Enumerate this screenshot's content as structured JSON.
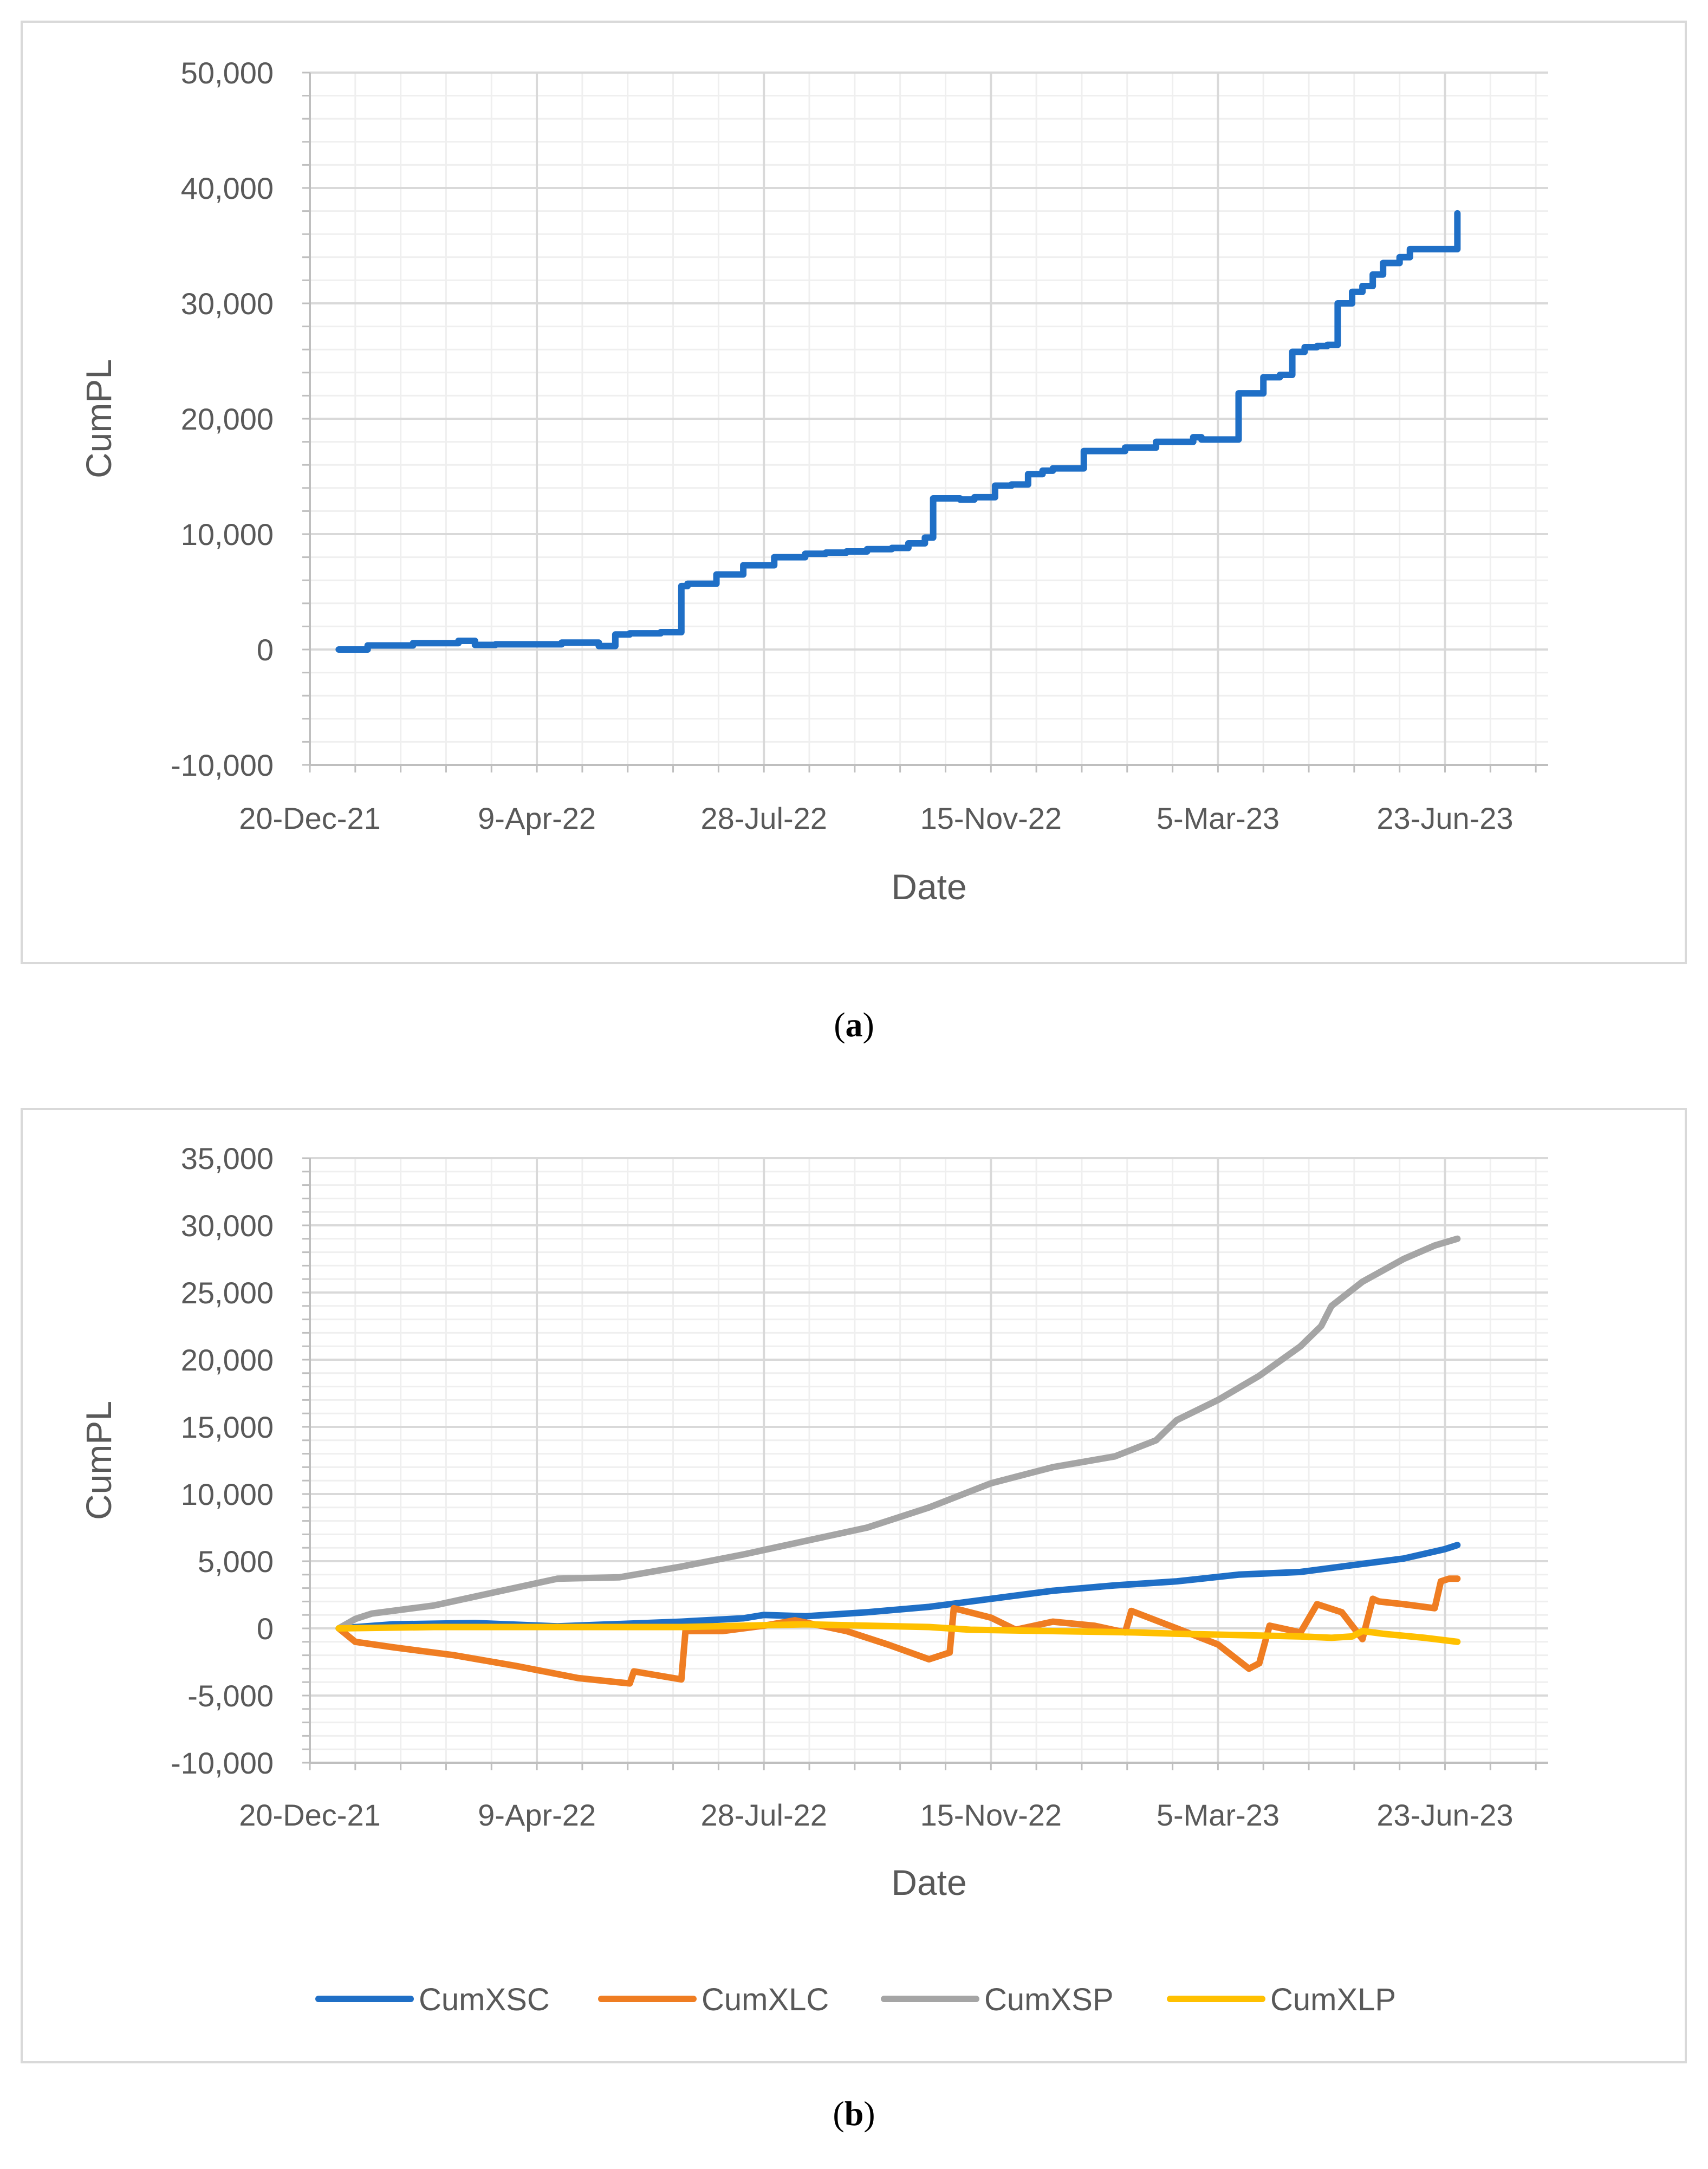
{
  "chart_data": [
    {
      "id": "a",
      "type": "line",
      "caption": "a",
      "xlabel": "Date",
      "ylabel": "CumPL",
      "ylim": [
        -10000,
        50000
      ],
      "yticks": [
        -10000,
        0,
        10000,
        20000,
        30000,
        40000,
        50000
      ],
      "ytick_labels": [
        "-10,000",
        "0",
        "10,000",
        "20,000",
        "30,000",
        "40,000",
        "50,000"
      ],
      "xlim_days": [
        0,
        600
      ],
      "xticks_days": [
        0,
        110,
        220,
        330,
        440,
        550
      ],
      "xtick_labels": [
        "20-Dec-21",
        "9-Apr-22",
        "28-Jul-22",
        "15-Nov-22",
        "5-Mar-23",
        "23-Jun-23"
      ],
      "legend": false,
      "series": [
        {
          "name": "CumPL",
          "color": "#1f6fc6",
          "step": true,
          "x": [
            14,
            28,
            50,
            72,
            80,
            90,
            105,
            122,
            140,
            148,
            155,
            170,
            180,
            183,
            197,
            210,
            220,
            225,
            240,
            250,
            260,
            270,
            282,
            290,
            298,
            302,
            308,
            315,
            322,
            332,
            340,
            348,
            355,
            360,
            365,
            370,
            375,
            382,
            395,
            410,
            420,
            428,
            432,
            450,
            455,
            462,
            470,
            476,
            482,
            488,
            493,
            498,
            505,
            510,
            515,
            520,
            528,
            533,
            556
          ],
          "y": [
            0,
            350,
            550,
            750,
            400,
            450,
            450,
            600,
            300,
            1300,
            1400,
            1500,
            5500,
            5700,
            6500,
            7300,
            7300,
            8000,
            8300,
            8400,
            8500,
            8700,
            8800,
            9200,
            9700,
            13100,
            13100,
            13000,
            13200,
            14200,
            14300,
            15200,
            15500,
            15700,
            15700,
            15700,
            17200,
            17200,
            17500,
            18000,
            18000,
            18400,
            18200,
            22200,
            22200,
            23600,
            23800,
            25800,
            26200,
            26300,
            26400,
            30000,
            31000,
            31500,
            32500,
            33500,
            34000,
            34700,
            37800
          ]
        }
      ]
    },
    {
      "id": "b",
      "type": "line",
      "caption": "b",
      "xlabel": "Date",
      "ylabel": "CumPL",
      "ylim": [
        -10000,
        35000
      ],
      "yticks": [
        -10000,
        -5000,
        0,
        5000,
        10000,
        15000,
        20000,
        25000,
        30000,
        35000
      ],
      "ytick_labels": [
        "-10,000",
        "-5,000",
        "0",
        "5,000",
        "10,000",
        "15,000",
        "20,000",
        "25,000",
        "30,000",
        "35,000"
      ],
      "xlim_days": [
        0,
        600
      ],
      "xticks_days": [
        0,
        110,
        220,
        330,
        440,
        550
      ],
      "xtick_labels": [
        "20-Dec-21",
        "9-Apr-22",
        "28-Jul-22",
        "15-Nov-22",
        "5-Mar-23",
        "23-Jun-23"
      ],
      "legend": true,
      "legend_position": "bottom",
      "series": [
        {
          "name": "CumXSC",
          "color": "#1f6fc6",
          "x": [
            14,
            40,
            80,
            120,
            180,
            210,
            220,
            240,
            270,
            300,
            330,
            360,
            390,
            420,
            450,
            480,
            510,
            530,
            550,
            556
          ],
          "y": [
            0,
            300,
            400,
            150,
            500,
            750,
            1000,
            900,
            1200,
            1600,
            2200,
            2800,
            3200,
            3500,
            4000,
            4200,
            4800,
            5200,
            5900,
            6200
          ]
        },
        {
          "name": "CumXLC",
          "color": "#ef7d22",
          "x": [
            14,
            22,
            40,
            70,
            100,
            130,
            155,
            157,
            180,
            182,
            200,
            220,
            235,
            260,
            280,
            300,
            310,
            312,
            330,
            342,
            360,
            380,
            395,
            398,
            420,
            440,
            455,
            460,
            465,
            480,
            488,
            500,
            510,
            515,
            518,
            530,
            545,
            548,
            552,
            556
          ],
          "y": [
            0,
            -1000,
            -1400,
            -2000,
            -2800,
            -3700,
            -4100,
            -3200,
            -3800,
            -200,
            -200,
            200,
            600,
            -200,
            -1200,
            -2300,
            -1800,
            1500,
            800,
            -100,
            500,
            200,
            -300,
            1300,
            0,
            -1200,
            -3000,
            -2600,
            200,
            -300,
            1800,
            1200,
            -800,
            2200,
            2000,
            1800,
            1500,
            3500,
            3700,
            3700
          ]
        },
        {
          "name": "CumXSP",
          "color": "#a5a5a5",
          "x": [
            14,
            22,
            30,
            60,
            90,
            120,
            150,
            180,
            210,
            240,
            270,
            300,
            330,
            360,
            390,
            410,
            420,
            440,
            460,
            480,
            490,
            495,
            510,
            530,
            545,
            556
          ],
          "y": [
            0,
            700,
            1100,
            1700,
            2700,
            3700,
            3800,
            4600,
            5500,
            6500,
            7500,
            9000,
            10800,
            12000,
            12800,
            14000,
            15500,
            17000,
            18800,
            21000,
            22500,
            24000,
            25800,
            27500,
            28500,
            29000
          ]
        },
        {
          "name": "CumXLP",
          "color": "#ffc000",
          "x": [
            14,
            60,
            120,
            180,
            240,
            300,
            320,
            360,
            400,
            420,
            450,
            480,
            495,
            505,
            510,
            520,
            540,
            556
          ],
          "y": [
            0,
            100,
            100,
            100,
            300,
            100,
            -100,
            -200,
            -300,
            -400,
            -500,
            -600,
            -700,
            -600,
            -200,
            -400,
            -700,
            -1000
          ]
        }
      ]
    }
  ]
}
